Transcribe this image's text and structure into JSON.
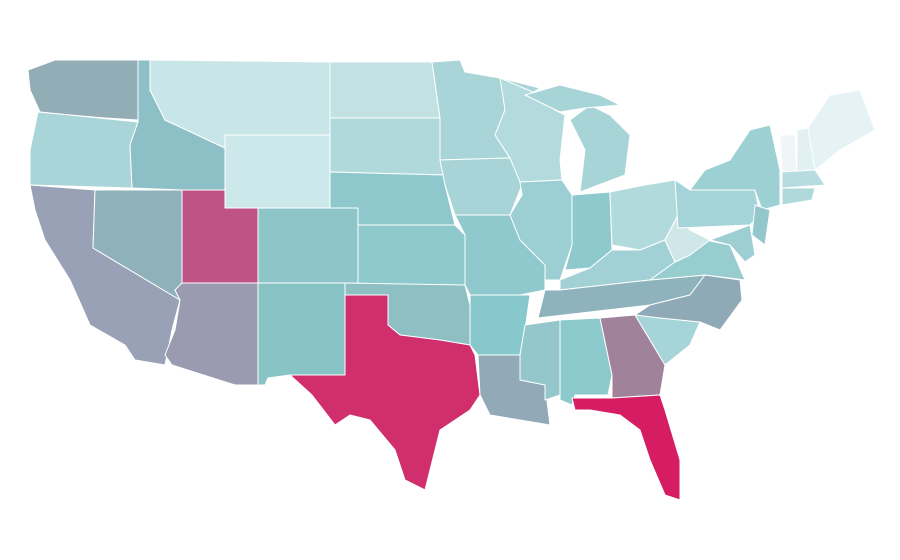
{
  "map": {
    "type": "choropleth",
    "stroke": "#ffffff",
    "fills": [
      "#93adb7",
      "#a9d5d8",
      "#98a1b5",
      "#8fb1b9",
      "#8cbfc6",
      "#c8e6e7",
      "#cde8ea",
      "#c05386",
      "#9a9bb0",
      "#8dc5c9",
      "#88c3c6",
      "#c2e1e3",
      "#b0d9dc",
      "#8ec8cd",
      "#8ecacd",
      "#8dbfc3",
      "#d02e6c",
      "#a9d5d8",
      "#a8d4d7",
      "#90c9cd",
      "#86c8cc",
      "#92aab7",
      "#b3dbde",
      "#9ccfd3",
      "#a6d4d7",
      "#a6d4d7",
      "#8ecacd",
      "#b1dadd",
      "#a1d1d4",
      "#8eb3bc",
      "#93c7cb",
      "#8bc9cc",
      "#a0829a",
      "#d61d63",
      "#a5d5d8",
      "#8fa9b7",
      "#98cdd0",
      "#cfe7e9",
      "#a4d4d7",
      "#9dd0d3",
      "#94c7cc",
      "#9dcfd2",
      "#f0f5f5",
      "#e1f1f2",
      "#e5f3f4",
      "#b6dcdf",
      "#b0d9dc"
    ]
  }
}
